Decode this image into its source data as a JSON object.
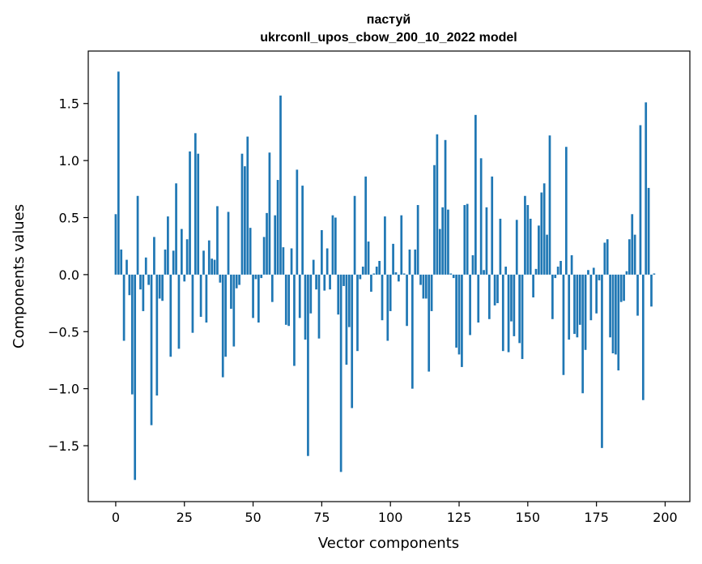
{
  "chart_data": {
    "type": "bar",
    "title_line1": "пастуй",
    "title_line2": "ukrconll_upos_cbow_200_10_2022 model",
    "xlabel": "Vector components",
    "ylabel": "Components values",
    "xlim": [
      -10,
      209
    ],
    "ylim": [
      -1.99,
      1.96
    ],
    "xticks": [
      0,
      25,
      50,
      75,
      100,
      125,
      150,
      175,
      200
    ],
    "yticks": [
      -1.5,
      -1.0,
      -0.5,
      0.0,
      0.5,
      1.0,
      1.5
    ],
    "ytick_labels": [
      "−1.5",
      "−1.0",
      "−0.5",
      "0.0",
      "0.5",
      "1.0",
      "1.5"
    ],
    "bar_color": "#1f77b4",
    "grid": false,
    "values": [
      0.53,
      1.78,
      0.22,
      -0.58,
      0.13,
      -0.18,
      -1.05,
      -1.8,
      0.69,
      -0.13,
      -0.32,
      0.15,
      -0.09,
      -1.32,
      0.33,
      -1.06,
      -0.21,
      -0.23,
      0.22,
      0.51,
      -0.72,
      0.21,
      0.8,
      -0.65,
      0.4,
      -0.06,
      0.31,
      1.08,
      -0.51,
      1.24,
      1.06,
      -0.37,
      0.21,
      -0.42,
      0.3,
      0.14,
      0.13,
      0.6,
      -0.07,
      -0.9,
      -0.72,
      0.55,
      -0.3,
      -0.63,
      -0.12,
      -0.09,
      1.06,
      0.95,
      1.21,
      0.41,
      -0.38,
      -0.04,
      -0.42,
      -0.03,
      0.33,
      0.54,
      1.07,
      -0.24,
      0.52,
      0.83,
      1.57,
      0.24,
      -0.44,
      -0.45,
      0.23,
      -0.8,
      0.92,
      -0.38,
      0.78,
      -0.57,
      -1.59,
      -0.34,
      0.13,
      -0.13,
      -0.56,
      0.39,
      -0.14,
      0.23,
      -0.13,
      0.52,
      0.5,
      -0.35,
      -1.73,
      -0.1,
      -0.79,
      -0.46,
      -1.17,
      0.69,
      -0.67,
      -0.04,
      0.07,
      0.86,
      0.29,
      -0.15,
      0.01,
      0.07,
      0.12,
      -0.4,
      0.51,
      -0.58,
      -0.32,
      0.27,
      0.02,
      -0.06,
      0.52,
      0.01,
      -0.45,
      0.22,
      -1.0,
      0.22,
      0.61,
      -0.09,
      -0.21,
      -0.21,
      -0.85,
      -0.32,
      0.96,
      1.23,
      0.4,
      0.59,
      1.18,
      0.57,
      0.01,
      -0.03,
      -0.64,
      -0.7,
      -0.81,
      0.61,
      0.62,
      -0.53,
      0.17,
      1.4,
      -0.42,
      1.02,
      0.04,
      0.59,
      -0.39,
      0.86,
      -0.27,
      -0.25,
      0.49,
      -0.67,
      0.07,
      -0.68,
      -0.41,
      -0.54,
      0.48,
      -0.6,
      -0.74,
      0.69,
      0.61,
      0.49,
      -0.2,
      0.05,
      0.43,
      0.72,
      0.8,
      0.35,
      1.22,
      -0.39,
      -0.03,
      0.07,
      0.12,
      -0.88,
      1.12,
      -0.57,
      0.17,
      -0.52,
      -0.55,
      -0.44,
      -1.04,
      -0.66,
      0.04,
      -0.4,
      0.06,
      -0.34,
      -0.05,
      -1.52,
      0.28,
      0.31,
      -0.55,
      -0.69,
      -0.7,
      -0.84,
      -0.24,
      -0.23,
      0.03,
      0.31,
      0.53,
      0.35,
      -0.36,
      1.31,
      -1.1,
      1.51,
      0.76,
      -0.28,
      0.01
    ]
  }
}
